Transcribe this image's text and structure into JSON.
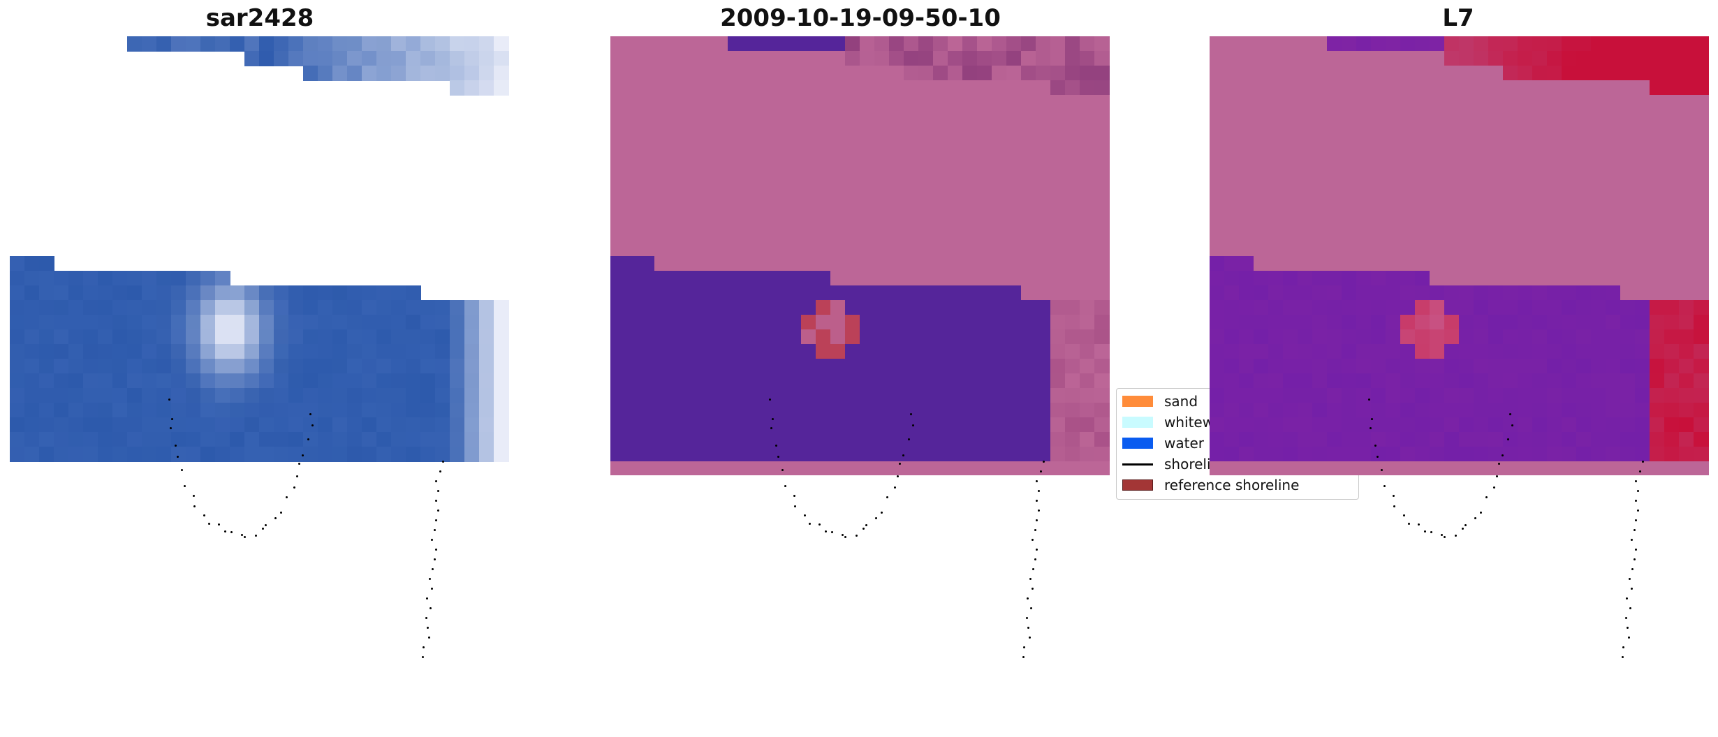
{
  "panels": [
    {
      "title": "sar2428",
      "kind": "rgb"
    },
    {
      "title": "2009-10-19-09-50-10",
      "kind": "classified"
    },
    {
      "title": "L7",
      "kind": "probability"
    }
  ],
  "legend": {
    "items": [
      {
        "label": "sand",
        "color": "#ff8c3a",
        "type": "patch"
      },
      {
        "label": "whitewater",
        "color": "#c9fbff",
        "type": "patch"
      },
      {
        "label": "water",
        "color": "#0a5cf0",
        "type": "patch"
      },
      {
        "label": "shoreline",
        "color": "#000000",
        "type": "line"
      },
      {
        "label": "reference shoreline",
        "color": "#a33636",
        "type": "patch"
      }
    ]
  },
  "colors": {
    "rgb_water": "#2d5aac",
    "rgb_white": "#e9ecf8",
    "class_land": "#bc6697",
    "class_water": "#55259a",
    "class_red": "#bb3848",
    "prob_land": "#bc6697",
    "prob_water": "#7a22a6",
    "prob_red": "#c8103a"
  }
}
